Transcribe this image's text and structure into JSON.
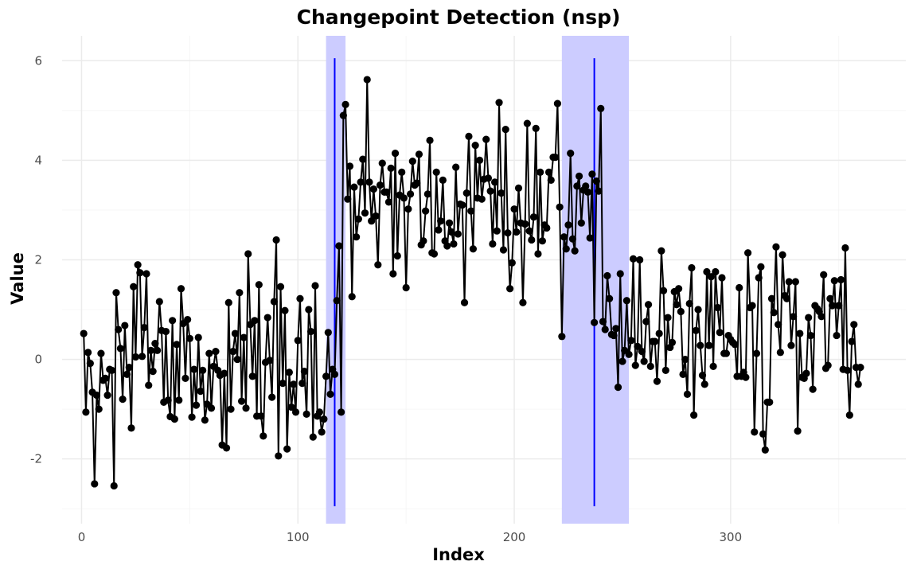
{
  "chart_data": {
    "type": "line",
    "title": "Changepoint Detection (nsp)",
    "xlabel": "Index",
    "ylabel": "Value",
    "xlim": [
      -9,
      381
    ],
    "ylim": [
      -3.3,
      6.5
    ],
    "x_ticks": [
      0,
      100,
      200,
      300
    ],
    "y_ticks": [
      -2,
      0,
      2,
      4,
      6
    ],
    "x_tick_labels": [
      "0",
      "100",
      "200",
      "300"
    ],
    "y_tick_labels": [
      "-2",
      "0",
      "2",
      "4",
      "6"
    ],
    "grid": true,
    "legend": "none",
    "colors": {
      "series": "#000000",
      "interval_fill": "#ccccff",
      "changepoint_line": "#0000ff"
    },
    "intervals": [
      {
        "start": 113,
        "end": 122
      },
      {
        "start": 222,
        "end": 253
      }
    ],
    "changepoints": [
      {
        "x": 117,
        "y_from": -2.95,
        "y_to": 6.05
      },
      {
        "x": 237,
        "y_from": -2.95,
        "y_to": 6.05
      }
    ],
    "series": [
      {
        "values": [
          0.52,
          -1.06,
          0.14,
          -0.08,
          -0.66,
          -2.5,
          -0.72,
          -1.0,
          0.12,
          -0.42,
          -0.38,
          -0.72,
          -0.2,
          -0.22,
          -2.54,
          1.34,
          0.6,
          0.22,
          -0.8,
          0.68,
          -0.3,
          -0.16,
          -1.38,
          1.46,
          0.05,
          1.9,
          1.74,
          0.06,
          0.64,
          1.72,
          -0.52,
          0.18,
          -0.24,
          0.32,
          0.18,
          1.16,
          0.58,
          -0.86,
          0.56,
          -0.82,
          -1.15,
          0.78,
          -1.2,
          0.3,
          -0.82,
          1.42,
          0.72,
          -0.38,
          0.8,
          0.42,
          -1.16,
          -0.2,
          -0.92,
          0.44,
          -0.64,
          -0.22,
          -1.22,
          -0.9,
          0.12,
          -0.98,
          -0.14,
          0.16,
          -0.22,
          -0.32,
          -1.72,
          -0.28,
          -1.78,
          1.14,
          -1.0,
          0.16,
          0.52,
          0.0,
          1.34,
          -0.84,
          0.44,
          -0.98,
          2.12,
          0.7,
          -0.34,
          0.78,
          -1.14,
          1.5,
          -1.14,
          -1.54,
          -0.06,
          0.84,
          -0.02,
          -0.76,
          1.16,
          2.4,
          -1.94,
          1.46,
          -0.48,
          0.98,
          -1.8,
          -0.26,
          -0.96,
          -0.5,
          -1.06,
          0.38,
          1.22,
          -0.48,
          -0.24,
          -1.1,
          1.0,
          0.56,
          -1.56,
          1.48,
          -1.14,
          -1.06,
          -1.46,
          -1.2,
          -0.34,
          0.54,
          -0.7,
          -0.2,
          -0.3,
          1.18,
          2.28,
          -1.06,
          4.9,
          5.12,
          3.22,
          3.88,
          1.26,
          3.46,
          2.46,
          2.82,
          3.56,
          4.02,
          2.94,
          5.62,
          3.56,
          2.78,
          3.42,
          2.88,
          1.9,
          3.5,
          3.94,
          3.36,
          3.36,
          3.16,
          3.84,
          1.72,
          4.14,
          2.08,
          3.3,
          3.76,
          3.24,
          1.44,
          3.02,
          3.32,
          3.98,
          3.5,
          3.54,
          4.12,
          2.3,
          2.38,
          2.98,
          3.32,
          4.4,
          2.14,
          2.12,
          3.76,
          2.6,
          2.78,
          3.6,
          2.38,
          2.28,
          2.74,
          2.56,
          2.32,
          3.86,
          2.52,
          3.12,
          3.1,
          1.14,
          3.34,
          4.48,
          2.98,
          2.22,
          4.3,
          3.24,
          4.0,
          3.22,
          3.62,
          4.42,
          3.64,
          3.38,
          2.32,
          3.56,
          2.58,
          5.16,
          3.34,
          2.2,
          4.62,
          2.54,
          1.42,
          1.94,
          3.02,
          2.56,
          3.44,
          2.74,
          1.14,
          2.72,
          4.74,
          2.58,
          2.4,
          2.86,
          4.64,
          2.12,
          3.76,
          2.38,
          2.7,
          2.64,
          3.76,
          3.6,
          4.06,
          4.06,
          5.14,
          3.06,
          0.46,
          2.46,
          2.22,
          2.7,
          4.14,
          2.42,
          2.18,
          3.48,
          3.68,
          2.74,
          3.4,
          3.48,
          3.36,
          2.44,
          3.72,
          0.74,
          3.58,
          3.38,
          5.04,
          0.76,
          0.6,
          1.68,
          1.22,
          0.5,
          0.48,
          0.62,
          -0.56,
          1.72,
          -0.04,
          0.18,
          1.18,
          0.1,
          0.38,
          2.02,
          -0.12,
          0.26,
          2.0,
          0.16,
          -0.04,
          0.76,
          1.1,
          -0.14,
          0.36,
          0.36,
          -0.44,
          0.52,
          2.18,
          1.38,
          -0.22,
          0.84,
          0.24,
          0.34,
          1.36,
          1.1,
          1.42,
          0.96,
          -0.3,
          0.0,
          -0.7,
          1.12,
          1.84,
          -1.12,
          0.58,
          1.0,
          0.28,
          -0.32,
          -0.5,
          1.76,
          0.28,
          1.66,
          -0.14,
          1.76,
          1.04,
          0.54,
          1.64,
          0.12,
          0.12,
          0.48,
          0.4,
          0.34,
          0.3,
          -0.34,
          1.44,
          -0.34,
          -0.26,
          -0.36,
          2.14,
          1.04,
          1.08,
          -1.46,
          0.12,
          1.64,
          1.86,
          -1.5,
          -1.82,
          -0.86,
          -0.86,
          1.22,
          0.94,
          2.26,
          0.7,
          0.14,
          2.1,
          1.28,
          1.22,
          1.56,
          0.28,
          0.86,
          1.56,
          -1.44,
          0.52,
          -0.36,
          -0.38,
          -0.28,
          0.84,
          0.48,
          -0.6,
          1.08,
          1.02,
          0.96,
          0.86,
          1.7,
          -0.18,
          -0.12,
          1.22,
          1.08,
          1.58,
          0.48,
          1.08,
          1.6,
          -0.2,
          2.24,
          -0.22,
          -1.12,
          0.36,
          0.7,
          -0.16,
          -0.5,
          -0.16
        ]
      }
    ]
  }
}
